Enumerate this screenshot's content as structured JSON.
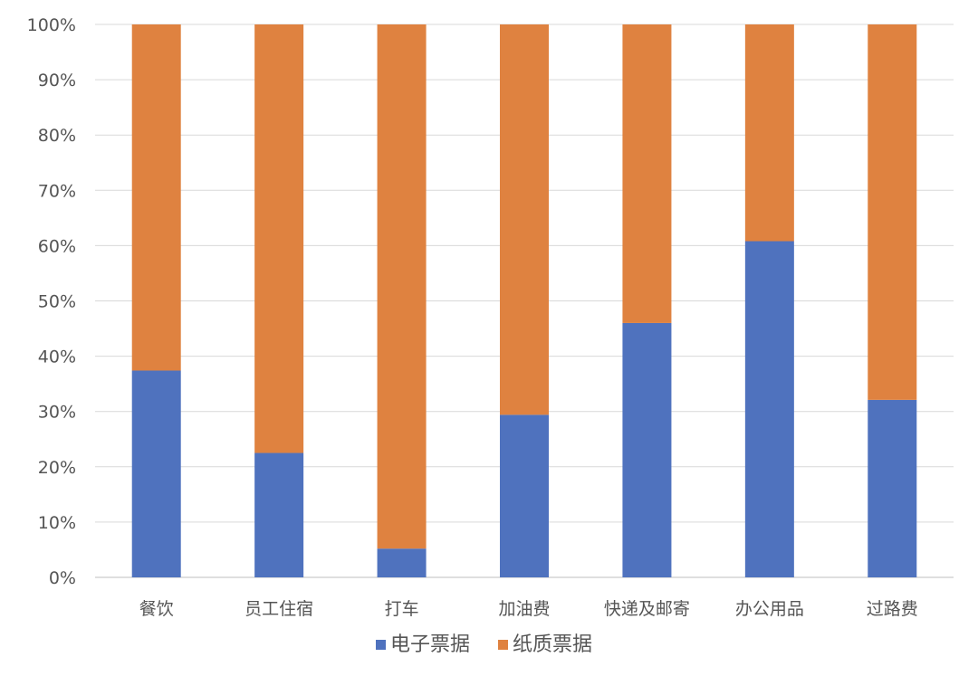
{
  "chart_data": {
    "type": "bar",
    "stacked": true,
    "title": "",
    "xlabel": "",
    "ylabel": "",
    "ylim": [
      0,
      100
    ],
    "yticks": [
      "0%",
      "10%",
      "20%",
      "30%",
      "40%",
      "50%",
      "60%",
      "70%",
      "80%",
      "90%",
      "100%"
    ],
    "grid": true,
    "legend_position": "bottom",
    "categories": [
      "餐饮",
      "员工住宿",
      "打车",
      "加油费",
      "快递及邮寄",
      "办公用品",
      "过路费"
    ],
    "series": [
      {
        "name": "电子票据",
        "color": "#4F72BE",
        "values": [
          37.4,
          22.5,
          5.2,
          29.4,
          46.0,
          60.8,
          32.1
        ]
      },
      {
        "name": "纸质票据",
        "color": "#DF8240",
        "values": [
          62.6,
          77.5,
          94.8,
          70.6,
          54.0,
          39.2,
          67.9
        ]
      }
    ]
  }
}
